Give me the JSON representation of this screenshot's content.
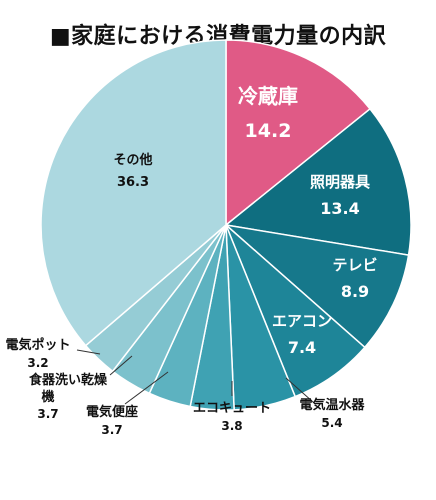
{
  "chart_data": {
    "type": "pie",
    "title": "■家庭における消費電力量の内訳",
    "slices": [
      {
        "label": "冷蔵庫",
        "value": 14.2,
        "color": "#e05a86"
      },
      {
        "label": "照明器具",
        "value": 13.4,
        "color": "#0f6e80"
      },
      {
        "label": "テレビ",
        "value": 8.9,
        "color": "#16788b"
      },
      {
        "label": "エアコン",
        "value": 7.4,
        "color": "#1e8598"
      },
      {
        "label": "電気温水器",
        "value": 5.4,
        "color": "#2a93a6"
      },
      {
        "label": "エコキュート",
        "value": 3.8,
        "color": "#3fa2b3"
      },
      {
        "label": "電気便座",
        "value": 3.7,
        "color": "#5db2c0"
      },
      {
        "label": "食器洗い乾燥機",
        "value": 3.7,
        "color": "#7cc1cc"
      },
      {
        "label": "電気ポット",
        "value": 3.2,
        "color": "#95ccd5"
      },
      {
        "label": "その他",
        "value": 36.3,
        "color": "#acd8e0"
      }
    ]
  }
}
